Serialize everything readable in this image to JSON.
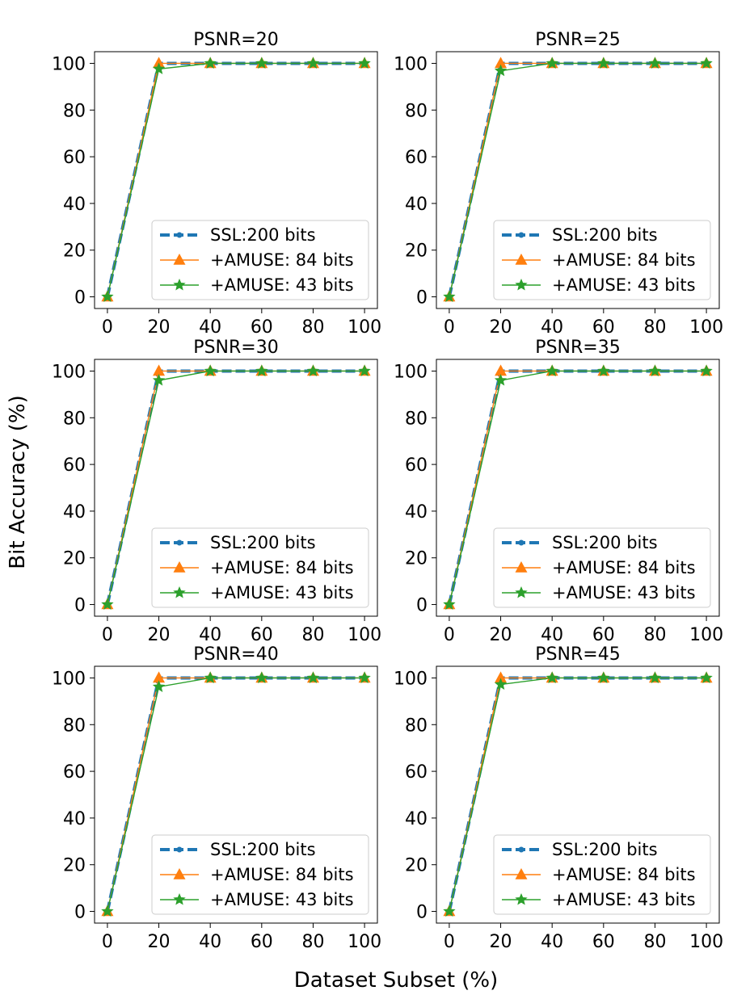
{
  "figure": {
    "xlabel": "Dataset Subset (%)",
    "ylabel": "Bit Accuracy (%)"
  },
  "colors": {
    "ssl": "#1f77b4",
    "amuse84": "#ff7f0e",
    "amuse43": "#2ca02c"
  },
  "chart_data": [
    {
      "type": "line",
      "title": "PSNR=20",
      "xlim": [
        -5,
        105
      ],
      "ylim": [
        -5,
        105
      ],
      "xticks": [
        0,
        20,
        40,
        60,
        80,
        100
      ],
      "yticks": [
        0,
        20,
        40,
        60,
        80,
        100
      ],
      "x": [
        0,
        20,
        40,
        60,
        80,
        100
      ],
      "legend_position": "lower-right",
      "series": [
        {
          "name": "SSL:200 bits",
          "values": [
            0,
            100,
            100,
            100,
            100,
            100
          ]
        },
        {
          "name": "+AMUSE: 84 bits",
          "values": [
            0,
            100,
            100,
            100,
            100,
            100
          ]
        },
        {
          "name": "+AMUSE: 43 bits",
          "values": [
            0,
            97.6,
            100,
            100,
            100,
            100
          ]
        }
      ]
    },
    {
      "type": "line",
      "title": "PSNR=25",
      "xlim": [
        -5,
        105
      ],
      "ylim": [
        -5,
        105
      ],
      "xticks": [
        0,
        20,
        40,
        60,
        80,
        100
      ],
      "yticks": [
        0,
        20,
        40,
        60,
        80,
        100
      ],
      "x": [
        0,
        20,
        40,
        60,
        80,
        100
      ],
      "legend_position": "lower-right",
      "series": [
        {
          "name": "SSL:200 bits",
          "values": [
            0,
            100,
            100,
            100,
            100,
            100
          ]
        },
        {
          "name": "+AMUSE: 84 bits",
          "values": [
            0,
            100,
            100,
            100,
            100,
            100
          ]
        },
        {
          "name": "+AMUSE: 43 bits",
          "values": [
            0,
            96.8,
            100,
            100,
            100,
            100
          ]
        }
      ]
    },
    {
      "type": "line",
      "title": "PSNR=30",
      "xlim": [
        -5,
        105
      ],
      "ylim": [
        -5,
        105
      ],
      "xticks": [
        0,
        20,
        40,
        60,
        80,
        100
      ],
      "yticks": [
        0,
        20,
        40,
        60,
        80,
        100
      ],
      "x": [
        0,
        20,
        40,
        60,
        80,
        100
      ],
      "legend_position": "lower-right",
      "series": [
        {
          "name": "SSL:200 bits",
          "values": [
            0,
            100,
            100,
            100,
            100,
            100
          ]
        },
        {
          "name": "+AMUSE: 84 bits",
          "values": [
            0,
            100,
            100,
            100,
            100,
            100
          ]
        },
        {
          "name": "+AMUSE: 43 bits",
          "values": [
            0,
            96.0,
            100,
            100,
            100,
            100
          ]
        }
      ]
    },
    {
      "type": "line",
      "title": "PSNR=35",
      "xlim": [
        -5,
        105
      ],
      "ylim": [
        -5,
        105
      ],
      "xticks": [
        0,
        20,
        40,
        60,
        80,
        100
      ],
      "yticks": [
        0,
        20,
        40,
        60,
        80,
        100
      ],
      "x": [
        0,
        20,
        40,
        60,
        80,
        100
      ],
      "legend_position": "lower-right",
      "series": [
        {
          "name": "SSL:200 bits",
          "values": [
            0,
            100,
            100,
            100,
            100,
            100
          ]
        },
        {
          "name": "+AMUSE: 84 bits",
          "values": [
            0,
            100,
            100,
            100,
            100,
            100
          ]
        },
        {
          "name": "+AMUSE: 43 bits",
          "values": [
            0,
            96.0,
            100,
            100,
            100,
            100
          ]
        }
      ]
    },
    {
      "type": "line",
      "title": "PSNR=40",
      "xlim": [
        -5,
        105
      ],
      "ylim": [
        -5,
        105
      ],
      "xticks": [
        0,
        20,
        40,
        60,
        80,
        100
      ],
      "yticks": [
        0,
        20,
        40,
        60,
        80,
        100
      ],
      "x": [
        0,
        20,
        40,
        60,
        80,
        100
      ],
      "legend_position": "lower-right",
      "series": [
        {
          "name": "SSL:200 bits",
          "values": [
            0,
            100,
            100,
            100,
            100,
            100
          ]
        },
        {
          "name": "+AMUSE: 84 bits",
          "values": [
            0,
            100,
            100,
            100,
            100,
            100
          ]
        },
        {
          "name": "+AMUSE: 43 bits",
          "values": [
            0,
            96.2,
            100,
            100,
            100,
            100
          ]
        }
      ]
    },
    {
      "type": "line",
      "title": "PSNR=45",
      "xlim": [
        -5,
        105
      ],
      "ylim": [
        -5,
        105
      ],
      "xticks": [
        0,
        20,
        40,
        60,
        80,
        100
      ],
      "yticks": [
        0,
        20,
        40,
        60,
        80,
        100
      ],
      "x": [
        0,
        20,
        40,
        60,
        80,
        100
      ],
      "legend_position": "lower-right",
      "series": [
        {
          "name": "SSL:200 bits",
          "values": [
            0,
            100,
            100,
            100,
            100,
            100
          ]
        },
        {
          "name": "+AMUSE: 84 bits",
          "values": [
            0,
            100,
            100,
            100,
            100,
            100
          ]
        },
        {
          "name": "+AMUSE: 43 bits",
          "values": [
            0,
            97.2,
            100,
            100,
            100,
            100
          ]
        }
      ]
    }
  ]
}
